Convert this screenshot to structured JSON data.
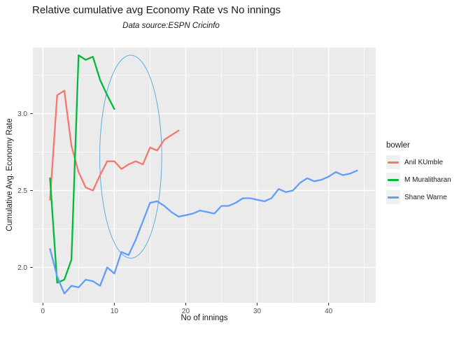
{
  "header": {
    "title": "Relative cumulative avg Economy Rate vs No innings",
    "subtitle": "Data source:ESPN Cricinfo"
  },
  "axes": {
    "x_label": "No of innings",
    "y_label": "Cumulative Avg. Economy Rate"
  },
  "legend": {
    "title": "bowler",
    "entries": [
      {
        "label": "Anil KUmble",
        "color": "#F8766D"
      },
      {
        "label": "M Muralitharan",
        "color": "#00BA38"
      },
      {
        "label": "Shane Warne",
        "color": "#619CFF"
      }
    ]
  },
  "colors": {
    "panel_bg": "#EBEBEB",
    "grid": "#FFFFFF",
    "tick_mark": "#333333",
    "tick_label": "#4D4D4D",
    "annotation": "#5BB0E4"
  },
  "chart_data": {
    "type": "line",
    "title": "Relative cumulative avg Economy Rate vs No innings",
    "subtitle": "Data source:ESPN Cricinfo",
    "xlabel": "No of innings",
    "ylabel": "Cumulative Avg. Economy Rate",
    "xlim": [
      -1.4,
      46.6
    ],
    "ylim": [
      1.77,
      3.43
    ],
    "x_ticks": [
      0,
      10,
      20,
      30,
      40
    ],
    "x_minor_ticks": [
      5,
      15,
      25,
      35,
      45
    ],
    "y_ticks": [
      2.0,
      2.5,
      3.0
    ],
    "y_tick_labels": [
      "2.0",
      "2.5",
      "3.0"
    ],
    "y_minor_ticks": [
      2.25,
      2.75,
      3.25
    ],
    "grid": true,
    "legend_position": "right",
    "series": [
      {
        "name": "Anil KUmble",
        "color": "#F8766D",
        "x": [
          1,
          2,
          3,
          4,
          5,
          6,
          7,
          8,
          9,
          10,
          11,
          12,
          13,
          14,
          15,
          16,
          17,
          18,
          19
        ],
        "y": [
          2.44,
          3.12,
          3.15,
          2.79,
          2.62,
          2.52,
          2.5,
          2.6,
          2.69,
          2.69,
          2.64,
          2.67,
          2.69,
          2.67,
          2.78,
          2.76,
          2.83,
          2.86,
          2.89
        ]
      },
      {
        "name": "M Muralitharan",
        "color": "#00BA38",
        "x": [
          1,
          2,
          3,
          4,
          5,
          6,
          7,
          8,
          9,
          10
        ],
        "y": [
          2.58,
          1.9,
          1.92,
          2.05,
          3.38,
          3.35,
          3.37,
          3.22,
          3.12,
          3.03
        ]
      },
      {
        "name": "Shane Warne",
        "color": "#619CFF",
        "x": [
          1,
          2,
          3,
          4,
          5,
          6,
          7,
          8,
          9,
          10,
          11,
          12,
          13,
          14,
          15,
          16,
          17,
          18,
          19,
          20,
          21,
          22,
          23,
          24,
          25,
          26,
          27,
          28,
          29,
          30,
          31,
          32,
          33,
          34,
          35,
          36,
          37,
          38,
          39,
          40,
          41,
          42,
          43,
          44
        ],
        "y": [
          2.12,
          1.94,
          1.83,
          1.88,
          1.87,
          1.92,
          1.91,
          1.88,
          2.0,
          1.96,
          2.1,
          2.08,
          2.18,
          2.3,
          2.42,
          2.43,
          2.4,
          2.36,
          2.33,
          2.34,
          2.35,
          2.37,
          2.36,
          2.35,
          2.4,
          2.4,
          2.42,
          2.45,
          2.45,
          2.44,
          2.43,
          2.45,
          2.51,
          2.49,
          2.5,
          2.55,
          2.58,
          2.56,
          2.57,
          2.59,
          2.62,
          2.6,
          2.61,
          2.63
        ]
      }
    ],
    "annotation_ellipse": {
      "center_x": 12.3,
      "center_y": 2.72,
      "rx_units": 4.34,
      "ry_units": 0.66,
      "color": "#5BB0E4"
    }
  }
}
